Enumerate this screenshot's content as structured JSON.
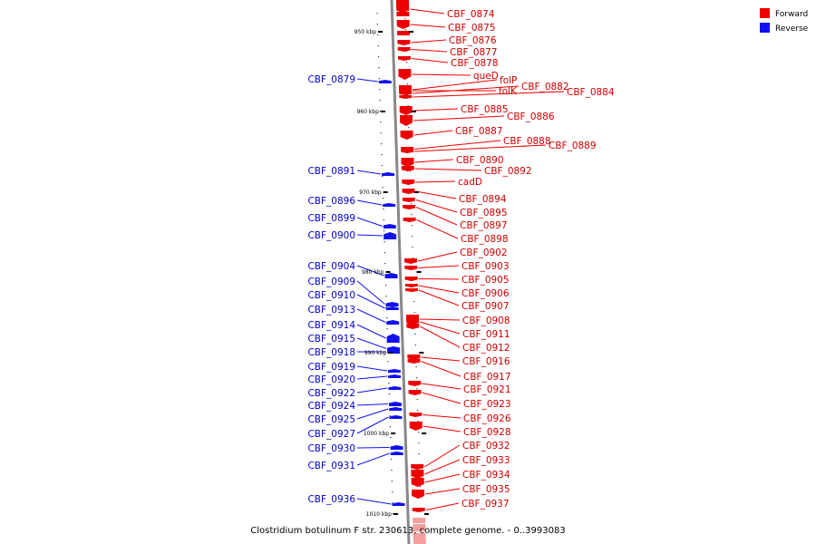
{
  "caption": "Clostridium botulinum F str. 230613, complete genome. - 0..3993083",
  "legend": [
    {
      "label": "Forward",
      "color": "#ee0000"
    },
    {
      "label": "Reverse",
      "color": "#1010ee"
    }
  ],
  "ticks": [
    "950 kbp",
    "960 kbp",
    "970 kbp",
    "980 kbp",
    "990 kbp",
    "1000 kbp",
    "1010 kbp"
  ],
  "forward_genes": [
    "CBF_0874",
    "CBF_0875",
    "CBF_0876",
    "CBF_0877",
    "CBF_0878",
    "queD",
    "folP",
    "CBF_0882",
    "CBF_0884",
    "folK",
    "CBF_0885",
    "CBF_0886",
    "CBF_0887",
    "CBF_0888",
    "CBF_0889",
    "CBF_0890",
    "CBF_0892",
    "cadD",
    "CBF_0894",
    "CBF_0895",
    "CBF_0897",
    "CBF_0898",
    "CBF_0902",
    "CBF_0903",
    "CBF_0905",
    "CBF_0906",
    "CBF_0907",
    "CBF_0908",
    "CBF_0911",
    "CBF_0912",
    "CBF_0916",
    "CBF_0917",
    "CBF_0921",
    "CBF_0923",
    "CBF_0926",
    "CBF_0928",
    "CBF_0932",
    "CBF_0933",
    "CBF_0934",
    "CBF_0935",
    "CBF_0937"
  ],
  "reverse_genes": [
    "CBF_0879",
    "CBF_0891",
    "CBF_0896",
    "CBF_0899",
    "CBF_0900",
    "CBF_0904",
    "CBF_0909",
    "CBF_0910",
    "CBF_0913",
    "CBF_0914",
    "CBF_0915",
    "CBF_0918",
    "CBF_0919",
    "CBF_0920",
    "CBF_0922",
    "CBF_0924",
    "CBF_0925",
    "CBF_0927",
    "CBF_0930",
    "CBF_0931",
    "CBF_0936"
  ]
}
